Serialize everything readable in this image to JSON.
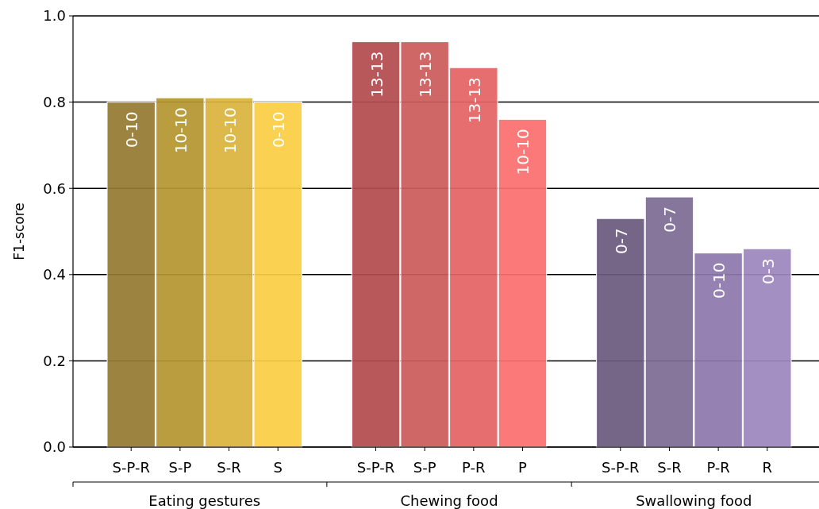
{
  "chart_data": {
    "type": "bar",
    "ylabel": "F1-score",
    "categories": [
      "S-P-R",
      "S-P",
      "S-R",
      "S",
      null,
      "S-P-R",
      "S-P",
      "P-R",
      "P",
      null,
      "S-P-R",
      "S-R",
      "P-R",
      "R"
    ],
    "values": [
      0.8,
      0.81,
      0.81,
      0.8,
      null,
      0.94,
      0.94,
      0.88,
      0.76,
      null,
      0.53,
      0.58,
      0.45,
      0.46
    ],
    "colors": [
      "#957a32",
      "#b4962f",
      "#dab33c",
      "#fbcd45",
      null,
      "#b34b4e",
      "#cc5b5b",
      "#e46363",
      "#fc6f6f",
      null,
      "#6b5a7e",
      "#7d6c94",
      "#8d79ac",
      "#9c87bd"
    ],
    "value_labels": [
      "0-10",
      "10-10",
      "10-10",
      "0-10",
      null,
      "13-13",
      "13-13",
      "13-13",
      "10-10",
      null,
      "0-7",
      "0-7",
      "0-10",
      "0-3"
    ],
    "ylim": [
      0,
      1
    ],
    "yticks": [
      {
        "value": 0,
        "label": "0.0"
      },
      0.2,
      0.4,
      0.6,
      0.8,
      {
        "value": 1,
        "label": "1.0"
      }
    ],
    "grid": "y",
    "annotations": [
      "Eating gestures",
      "Chewing food",
      "Swallowing food"
    ]
  }
}
